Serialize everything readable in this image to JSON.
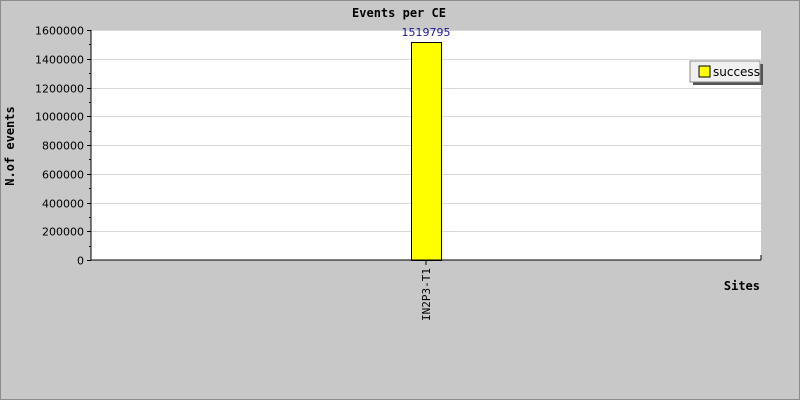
{
  "chart_data": {
    "type": "bar",
    "title": "Events per CE",
    "xlabel": "Sites",
    "ylabel": "N.of events",
    "categories": [
      "IN2P3-T1"
    ],
    "series": [
      {
        "name": "success",
        "values": [
          1519795
        ],
        "color": "#ffff00"
      }
    ],
    "ylim": [
      0,
      1600000
    ],
    "yticks": [
      0,
      200000,
      400000,
      600000,
      800000,
      1000000,
      1200000,
      1400000,
      1600000
    ],
    "data_labels": [
      "1519795"
    ],
    "grid": true,
    "legend_position": "top-right",
    "background_color": "#c8c8c8",
    "plot_background": "#ffffff",
    "data_label_color": "#1a1a8c"
  }
}
